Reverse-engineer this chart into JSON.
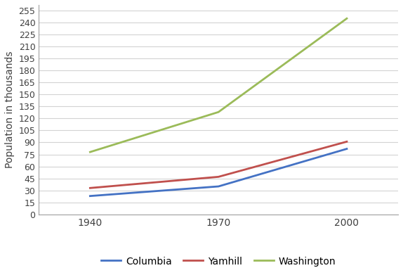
{
  "years": [
    1940,
    1970,
    2000
  ],
  "series": {
    "Columbia": {
      "values": [
        23,
        35,
        82
      ],
      "color": "#4472C4"
    },
    "Yamhill": {
      "values": [
        33,
        47,
        91
      ],
      "color": "#C0504D"
    },
    "Washington": {
      "values": [
        78,
        128,
        245
      ],
      "color": "#9BBB59"
    }
  },
  "ylabel": "Population in thousands",
  "yticks": [
    0,
    15,
    30,
    45,
    60,
    75,
    90,
    105,
    120,
    135,
    150,
    165,
    180,
    195,
    210,
    225,
    240,
    255
  ],
  "ylim": [
    0,
    262
  ],
  "xlim": [
    1928,
    2012
  ],
  "xticks": [
    1940,
    1970,
    2000
  ],
  "background_color": "#ffffff",
  "grid_color": "#d3d3d3",
  "legend_ncol": 3,
  "line_width": 2.0
}
